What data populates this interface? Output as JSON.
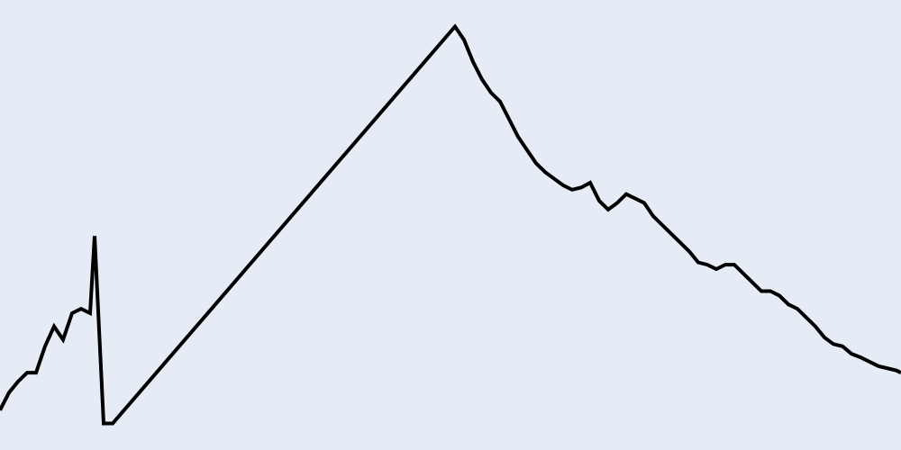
{
  "chart_data": {
    "type": "line",
    "title": "",
    "xlabel": "",
    "ylabel": "",
    "grid": false,
    "legend": "none",
    "xlim": [
      0,
      100
    ],
    "ylim": [
      0,
      100
    ],
    "colors": {
      "background": "#e5ecf6",
      "line": "#000000"
    },
    "series": [
      {
        "x": [
          0,
          1,
          2,
          3,
          4,
          5,
          6,
          7,
          8,
          9,
          10,
          10.5,
          11.5,
          12.5,
          50.5,
          51.5,
          52.5,
          53.5,
          54.5,
          55.5,
          56.5,
          57.5,
          58.5,
          59.5,
          60.5,
          61.5,
          62.5,
          63.5,
          64.5,
          65.5,
          66.5,
          67.5,
          68.5,
          69.5,
          70.5,
          71.5,
          72.5,
          73.5,
          74.5,
          75.5,
          76.5,
          77.5,
          78.5,
          79.5,
          80.5,
          81.5,
          82.5,
          83.5,
          84.5,
          85.5,
          86.5,
          87.5,
          88.5,
          89.5,
          90.5,
          91.5,
          92.5,
          93.5,
          94.5,
          95.5,
          96.5,
          97.5,
          98.5,
          99.5,
          100
        ],
        "y": [
          8,
          12,
          14.5,
          16.5,
          16.5,
          22.5,
          27,
          24,
          30,
          31,
          30,
          47.5,
          5,
          5,
          95,
          92,
          87,
          83,
          80,
          78,
          74,
          70,
          67,
          64,
          62,
          60.5,
          59,
          58,
          58.5,
          59.6,
          55.5,
          53.5,
          55,
          57,
          56,
          55,
          52,
          50,
          48,
          46,
          44,
          41.5,
          41,
          40,
          41,
          41,
          39,
          37,
          35,
          35,
          34,
          32,
          31,
          29,
          27,
          24.5,
          23,
          22.5,
          20.8,
          20,
          19,
          18,
          17.5,
          17,
          16.5
        ]
      }
    ]
  }
}
